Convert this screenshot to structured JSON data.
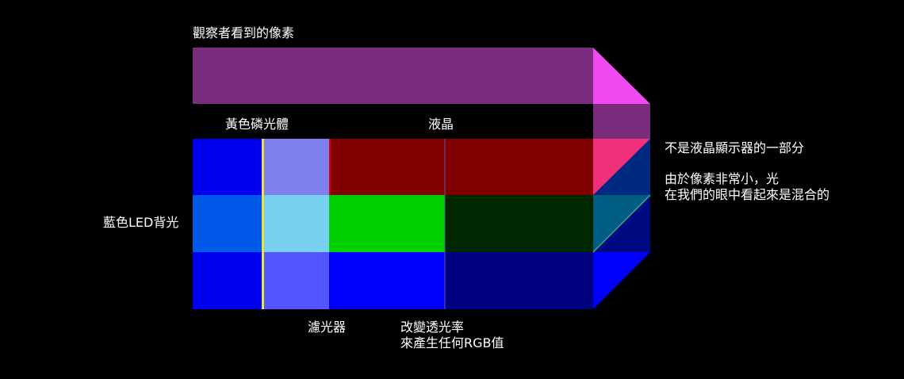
{
  "labels": {
    "observed_pixel": "觀察者看到的像素",
    "yellow_phosphor": "黃色磷光體",
    "liquid_crystal": "液晶",
    "blue_led_backlight": "藍色LED背光",
    "color_filter": "濾光器",
    "transmittance_line1": "改變透光率",
    "transmittance_line2": "來產生任何RGB值",
    "not_part_of_lcd": "不是液晶顯示器的一部分",
    "mixing_line1": "由於像素非常小，光",
    "mixing_line2": "在我們的眼中看起來是混合的"
  },
  "colors": {
    "observed_pixel": "#7b2d7d",
    "observed_pixel_top": "#f04af0",
    "backlight_blue": "#0000f0",
    "backlight_mid": "#0058e8",
    "yellow_line": "#f0e040",
    "phosphor_top": "#7f7ff0",
    "phosphor_mid": "#78d0f0",
    "phosphor_bottom": "#5555ff",
    "filter_red": "#800000",
    "filter_green": "#00d000",
    "filter_blue": "#0000ff",
    "lc_red": "#800000",
    "lc_green": "#002800",
    "lc_blue": "#000080",
    "mix_red": "#f0307a",
    "mix_green": "#005c80",
    "mix_blue": "#0000ff",
    "mix_back_top": "#002a80",
    "mix_back_mid": "#000a80"
  }
}
